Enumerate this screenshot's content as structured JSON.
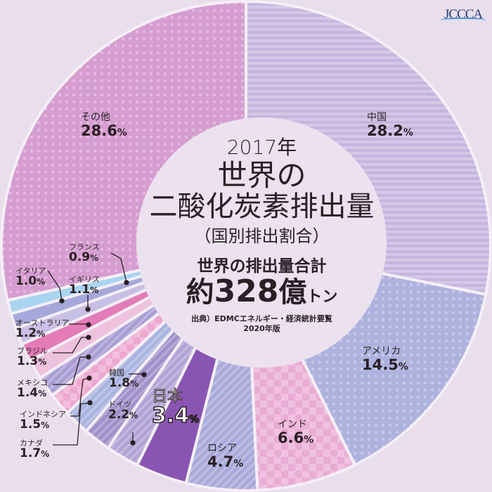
{
  "chart_data": {
    "type": "pie",
    "donut": true,
    "start": "top",
    "direction": "clockwise",
    "title": "2017年 世界の二酸化炭素排出量",
    "subtitle": "（国別排出割合）",
    "unit": "%",
    "slices": [
      {
        "label": "中国",
        "value": 28.2,
        "color": "#c6b5de"
      },
      {
        "label": "アメリカ",
        "value": 14.5,
        "color": "#adb2de"
      },
      {
        "label": "インド",
        "value": 6.6,
        "color": "#e9acd4"
      },
      {
        "label": "ロシア",
        "value": 4.7,
        "color": "#a9a9da"
      },
      {
        "label": "日本",
        "value": 3.4,
        "color": "#8a55b2"
      },
      {
        "label": "ドイツ",
        "value": 2.2,
        "color": "#b2a3d6"
      },
      {
        "label": "韓国",
        "value": 1.8,
        "color": "#9f92ca"
      },
      {
        "label": "カナダ",
        "value": 1.7,
        "color": "#aab4e0"
      },
      {
        "label": "インドネシア",
        "value": 1.5,
        "color": "#eda8d0"
      },
      {
        "label": "メキシコ",
        "value": 1.4,
        "color": "#a99fd4"
      },
      {
        "label": "ブラジル",
        "value": 1.3,
        "color": "#eec2de"
      },
      {
        "label": "オーストラリア",
        "value": 1.2,
        "color": "#e47cb8"
      },
      {
        "label": "イギリス",
        "value": 1.1,
        "color": "#c8bfe4"
      },
      {
        "label": "イタリア",
        "value": 1.0,
        "color": "#a6a8da"
      },
      {
        "label": "フランス",
        "value": 0.9,
        "color": "#a9d4ef"
      },
      {
        "label": "その他",
        "value": 28.6,
        "color": "#d59dd0"
      }
    ]
  },
  "center": {
    "year": "2017年",
    "title_line1": "世界の",
    "title_line2": "二酸化炭素排出量",
    "subtitle": "（国別排出割合）",
    "total_label": "世界の排出量合計",
    "total_prefix": "約",
    "total_value": "328",
    "total_unit_big": "億",
    "total_unit_small": "トン",
    "source_line1": "出典）EDMCエネルギー・経済統計要覧",
    "source_line2": "2020年版"
  },
  "labels": {
    "china": {
      "name": "中国",
      "value": "28.2"
    },
    "usa": {
      "name": "アメリカ",
      "value": "14.5"
    },
    "india": {
      "name": "インド",
      "value": "6.6"
    },
    "russia": {
      "name": "ロシア",
      "value": "4.7"
    },
    "japan": {
      "name": "日本",
      "value": "3.4"
    },
    "germany": {
      "name": "ドイツ",
      "value": "2.2"
    },
    "korea": {
      "name": "韓国",
      "value": "1.8"
    },
    "canada": {
      "name": "カナダ",
      "value": "1.7"
    },
    "indonesia": {
      "name": "インドネシア",
      "value": "1.5"
    },
    "mexico": {
      "name": "メキシコ",
      "value": "1.4"
    },
    "brazil": {
      "name": "ブラジル",
      "value": "1.3"
    },
    "australia": {
      "name": "オーストラリア",
      "value": "1.2"
    },
    "uk": {
      "name": "イギリス",
      "value": "1.1"
    },
    "italy": {
      "name": "イタリア",
      "value": "1.0"
    },
    "france": {
      "name": "フランス",
      "value": "0.9"
    },
    "other": {
      "name": "その他",
      "value": "28.6"
    },
    "pct": "%"
  },
  "logo": {
    "text": "JCCCA"
  }
}
